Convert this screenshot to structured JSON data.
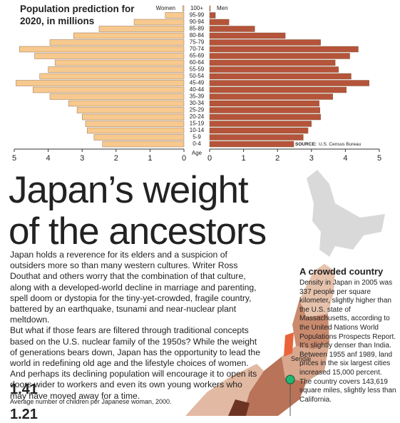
{
  "chart_data": {
    "type": "bar",
    "orientation": "pyramid",
    "title": "Population prediction for 2020, in millions",
    "y_label": "Age",
    "source": "SOURCE:",
    "source_text": "U.S. Census Bureau",
    "categories": [
      "100+",
      "95-99",
      "90-94",
      "85-89",
      "80-84",
      "75-79",
      "70-74",
      "65-69",
      "60-64",
      "55-59",
      "50-54",
      "45-49",
      "40-44",
      "35-39",
      "30-34",
      "25-29",
      "20-24",
      "15-19",
      "10-14",
      "5-9",
      "0-4"
    ],
    "series": [
      {
        "name": "Women",
        "color": "#f7c98e",
        "side": "left",
        "values": [
          0.04,
          0.55,
          1.47,
          2.5,
          3.25,
          3.95,
          4.85,
          4.4,
          3.8,
          4.0,
          4.25,
          4.95,
          4.45,
          3.95,
          3.4,
          3.15,
          3.0,
          2.9,
          2.85,
          2.65,
          2.4
        ]
      },
      {
        "name": "Men",
        "color": "#b5543a",
        "side": "right",
        "values": [
          0.02,
          0.17,
          0.57,
          1.33,
          2.23,
          3.27,
          4.38,
          4.13,
          3.7,
          3.8,
          4.17,
          4.7,
          4.03,
          3.63,
          3.23,
          3.25,
          3.27,
          3.0,
          2.9,
          2.76,
          2.48
        ]
      }
    ],
    "xlim": [
      0,
      5
    ],
    "xticks": [
      0,
      1,
      2,
      3,
      4,
      5
    ]
  },
  "headline": [
    "Japan’s weight",
    "of the ancestors"
  ],
  "body": [
    "Japan holds a reverence for its elders and a suspicion of outsiders more so than many western cultures. Writer Ross Douthat and others worry that the combination of that culture, along with a developed-world decline in marriage and parenting, spell doom or dystopia for the tiny-yet-crowded, fragile country, battered by an earthquake, tsunami and near-nuclear plant meltdown.",
    "But what if those fears are filtered through traditional concepts based on the U.S. nuclear family of the 1950s? While the weight of generations bears down, Japan has the opportunity to lead the world in redefining old age and the lifestyle choices of women. And perhaps its declining population will encourage it to open its doors wider to workers and even its own young workers who may have moved away for a time."
  ],
  "stats": [
    {
      "value": "1.41",
      "caption": "Average number of children per Japanese woman, 2000."
    },
    {
      "value": "1.21"
    }
  ],
  "sidebar": {
    "heading": "A crowded country",
    "paragraphs": [
      "Density in Japan in 2005 was 337 people per square kilometer,  slightly higher than the U.S. state of Massachusetts, according to the United Nations World Populations Prospects Report. It’s slightly denser than India.",
      "Between 1955 anf 1989, land prices in the six largest cities increased 15,000 percent.",
      "The country covers 143,619 square miles, slightly less than California."
    ]
  },
  "map": {
    "label": "Sendai"
  }
}
